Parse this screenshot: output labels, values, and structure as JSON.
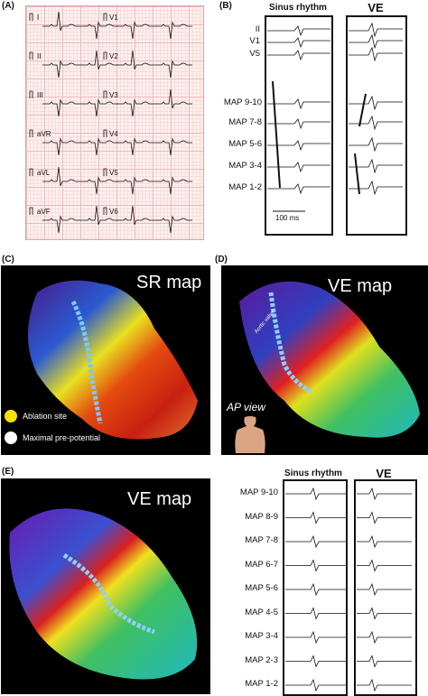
{
  "panel_a": {
    "label": "(A)",
    "leads_left": [
      "I",
      "II",
      "III",
      "aVR",
      "aVL",
      "aVF"
    ],
    "leads_right": [
      "V1",
      "V2",
      "V3",
      "V4",
      "V5",
      "V6"
    ]
  },
  "panel_b": {
    "label": "(B)",
    "col_sinus": "Sinus rhythm",
    "col_ve": "VE",
    "surface_leads": [
      "II",
      "V1",
      "V5"
    ],
    "map_rows": [
      "MAP 9-10",
      "MAP 7-8",
      "MAP 5-6",
      "MAP 3-4",
      "MAP 1-2"
    ],
    "scale_bar": "100 ms"
  },
  "panel_c": {
    "label": "(C)",
    "title": "SR map",
    "legend": {
      "ablation_site": "Ablation site",
      "maximal_prepotential": "Maximal pre-potential",
      "ablation_color": "#f5e000",
      "prepotential_color": "#ffffff"
    }
  },
  "panel_d": {
    "label": "(D)",
    "title": "VE map",
    "view_label": "AP view",
    "catheter_text": "Aortic valve"
  },
  "panel_e": {
    "label": "(E)",
    "title": "VE map",
    "col_sinus": "Sinus rhythm",
    "col_ve": "VE",
    "map_rows": [
      "MAP 9-10",
      "MAP 8-9",
      "MAP 7-8",
      "MAP 6-7",
      "MAP 5-6",
      "MAP 4-5",
      "MAP 3-4",
      "MAP 2-3",
      "MAP 1-2"
    ]
  }
}
